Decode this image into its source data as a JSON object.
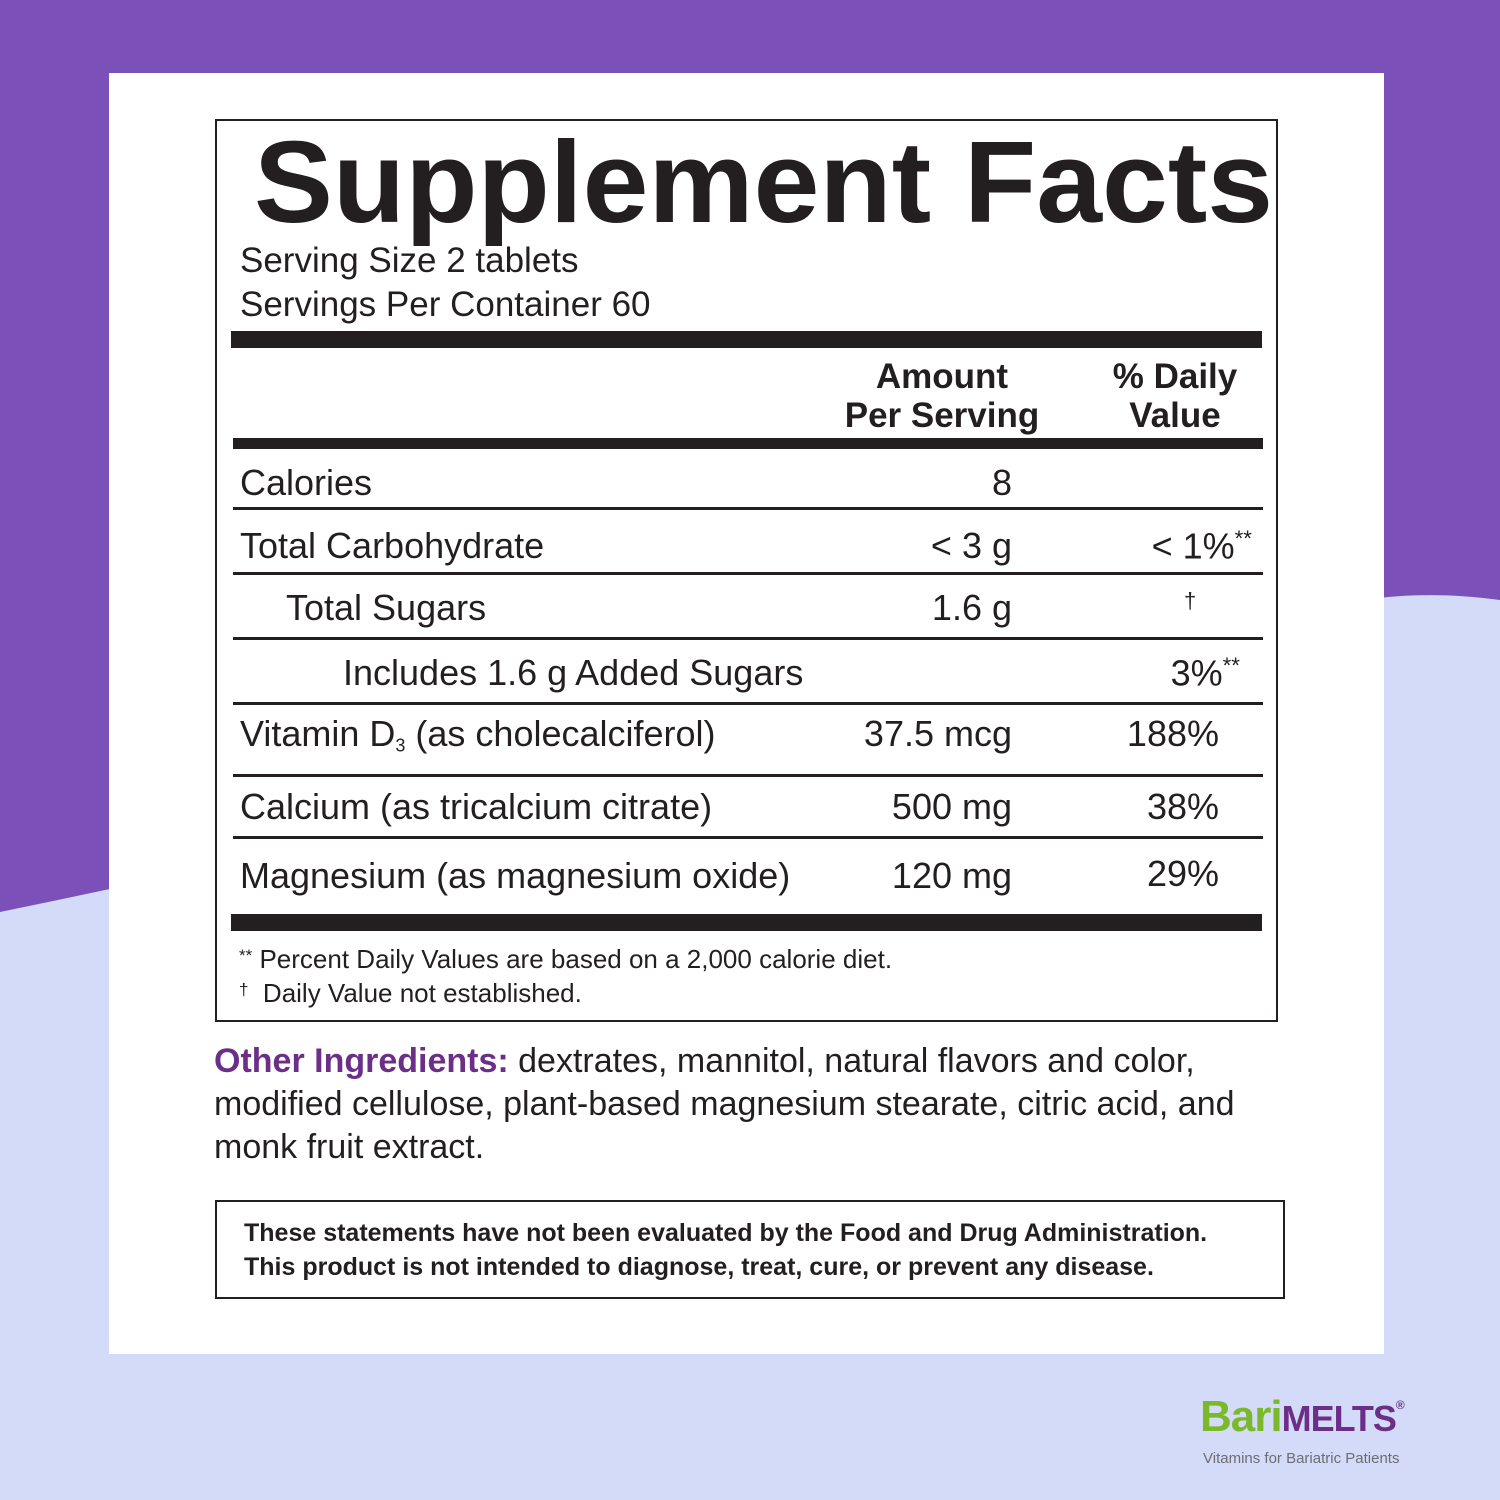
{
  "colors": {
    "top_purple": "#7b50b9",
    "background_lavender": "#d3dbf8",
    "ink": "#231f20",
    "accent_purple": "#6b2f88",
    "brand_green": "#7ab929"
  },
  "panel": {
    "title": "Supplement Facts",
    "serving_size": "Serving Size 2 tablets",
    "servings_per_container": "Servings Per Container 60",
    "header": {
      "amount_line1": "Amount",
      "amount_line2": "Per Serving",
      "dv_line1": "% Daily",
      "dv_line2": "Value"
    },
    "rows": [
      {
        "label": "Calories",
        "amount": "8",
        "dv": ""
      },
      {
        "label": "Total Carbohydrate",
        "amount": "< 3 g",
        "dv": "< 1%",
        "dv_mark": "**"
      },
      {
        "label": "Total Sugars",
        "amount": "1.6 g",
        "dv": "",
        "dv_mark": "†"
      },
      {
        "label": "Includes 1.6 g Added Sugars",
        "amount": "",
        "dv": "3%",
        "dv_mark": "**"
      },
      {
        "label_prefix": "Vitamin D",
        "label_sub": "3",
        "label_suffix": " (as cholecalciferol)",
        "amount": "37.5 mcg",
        "dv": "188%"
      },
      {
        "label": "Calcium (as tricalcium citrate)",
        "amount": "500 mg",
        "dv": "38%"
      },
      {
        "label": "Magnesium (as magnesium oxide)",
        "amount": "120 mg",
        "dv": "29%"
      }
    ],
    "footnotes": [
      {
        "mark": "**",
        "text": "Percent Daily Values are based on a 2,000 calorie diet."
      },
      {
        "mark": "†",
        "text": "Daily Value not established."
      }
    ]
  },
  "other_ingredients": {
    "lead": "Other Ingredients:",
    "text": " dextrates, mannitol, natural flavors and color, modified cellulose, plant-based magnesium stearate, citric acid, and monk fruit extract."
  },
  "disclaimer": {
    "line1": "These statements have not been evaluated by the Food and Drug Administration.",
    "line2": "This product is not intended to diagnose, treat, cure, or prevent any disease."
  },
  "brand": {
    "name_part1": "Bari",
    "name_part2": "MELTS",
    "registered": "®",
    "tagline": "Vitamins for Bariatric Patients"
  }
}
